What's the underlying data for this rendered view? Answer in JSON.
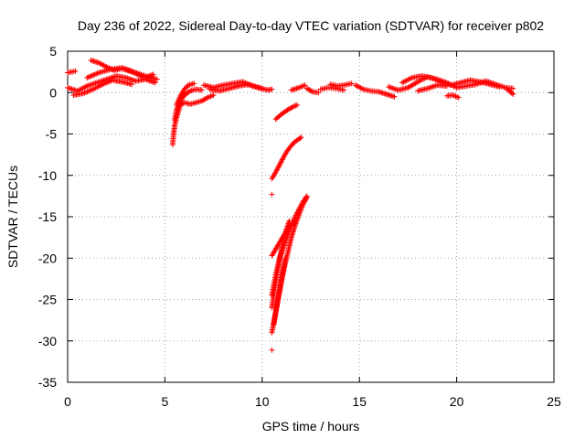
{
  "chart_data": {
    "type": "scatter",
    "title": "Day 236 of 2022, Sidereal Day-to-day VTEC variation (SDTVAR) for receiver p802",
    "xlabel": "GPS time / hours",
    "ylabel": "SDTVAR / TECUs",
    "xlim": [
      0,
      25
    ],
    "ylim": [
      -35,
      5
    ],
    "xticks": [
      0,
      5,
      10,
      15,
      20,
      25
    ],
    "yticks": [
      5,
      0,
      -5,
      -10,
      -15,
      -20,
      -25,
      -30,
      -35
    ],
    "grid": true,
    "marker": "+",
    "color": "#ff0000",
    "series": [
      {
        "name": "SDTVAR",
        "segments": [
          [
            [
              0.0,
              0.6
            ],
            [
              0.5,
              0.2
            ],
            [
              1.0,
              0.8
            ],
            [
              1.5,
              1.2
            ],
            [
              2.0,
              1.6
            ],
            [
              2.5,
              2.0
            ],
            [
              3.0,
              1.8
            ],
            [
              3.5,
              1.4
            ],
            [
              4.0,
              1.6
            ],
            [
              4.5,
              1.2
            ]
          ],
          [
            [
              0.0,
              2.4
            ],
            [
              0.4,
              2.6
            ]
          ],
          [
            [
              1.2,
              3.9
            ],
            [
              1.6,
              3.6
            ],
            [
              2.0,
              3.1
            ],
            [
              2.4,
              2.7
            ],
            [
              2.8,
              2.9
            ],
            [
              3.2,
              2.6
            ],
            [
              3.6,
              2.2
            ],
            [
              4.0,
              1.8
            ],
            [
              4.4,
              2.2
            ]
          ],
          [
            [
              1.0,
              1.8
            ],
            [
              1.6,
              2.4
            ],
            [
              2.2,
              2.8
            ],
            [
              2.8,
              3.0
            ],
            [
              3.4,
              2.5
            ],
            [
              4.0,
              2.0
            ],
            [
              4.6,
              1.6
            ]
          ],
          [
            [
              0.3,
              -0.3
            ],
            [
              0.8,
              -0.1
            ],
            [
              1.3,
              0.4
            ],
            [
              1.8,
              1.0
            ],
            [
              2.3,
              1.5
            ],
            [
              2.8,
              1.3
            ],
            [
              3.3,
              1.0
            ]
          ],
          [
            [
              5.4,
              -6.3
            ],
            [
              5.45,
              -5.0
            ],
            [
              5.5,
              -4.0
            ],
            [
              5.6,
              -3.0
            ],
            [
              5.7,
              -2.2
            ],
            [
              5.8,
              -1.5
            ],
            [
              6.0,
              -1.2
            ],
            [
              6.3,
              -1.4
            ],
            [
              6.6,
              -1.2
            ],
            [
              6.9,
              -1.0
            ],
            [
              7.2,
              -0.6
            ],
            [
              7.5,
              -0.3
            ]
          ],
          [
            [
              5.5,
              -3.3
            ],
            [
              5.6,
              -2.0
            ],
            [
              5.8,
              -1.0
            ],
            [
              6.0,
              -0.3
            ],
            [
              6.3,
              0.2
            ],
            [
              6.6,
              0.4
            ],
            [
              6.9,
              0.3
            ]
          ],
          [
            [
              5.6,
              -1.5
            ],
            [
              5.8,
              -0.4
            ],
            [
              6.0,
              0.4
            ],
            [
              6.2,
              0.9
            ],
            [
              6.5,
              1.1
            ]
          ],
          [
            [
              7.3,
              0.4
            ],
            [
              7.8,
              0.2
            ],
            [
              8.3,
              0.5
            ],
            [
              8.8,
              0.8
            ],
            [
              9.3,
              1.0
            ],
            [
              9.8,
              0.6
            ],
            [
              10.3,
              0.3
            ],
            [
              10.5,
              0.4
            ]
          ],
          [
            [
              7.0,
              0.9
            ],
            [
              7.5,
              0.6
            ],
            [
              8.0,
              0.9
            ],
            [
              8.5,
              1.1
            ],
            [
              9.0,
              1.3
            ],
            [
              9.5,
              0.8
            ],
            [
              10.0,
              0.5
            ]
          ],
          [
            [
              10.5,
              -12.3
            ]
          ],
          [
            [
              10.5,
              -10.4
            ],
            [
              10.7,
              -9.6
            ],
            [
              10.9,
              -8.7
            ],
            [
              11.1,
              -7.8
            ],
            [
              11.3,
              -7.0
            ],
            [
              11.5,
              -6.4
            ],
            [
              11.7,
              -5.9
            ],
            [
              11.9,
              -5.6
            ],
            [
              12.0,
              -5.4
            ]
          ],
          [
            [
              10.7,
              -3.2
            ],
            [
              11.0,
              -2.6
            ],
            [
              11.3,
              -2.1
            ],
            [
              11.6,
              -1.7
            ],
            [
              11.8,
              -1.5
            ]
          ],
          [
            [
              10.5,
              -31.1
            ]
          ],
          [
            [
              10.5,
              -29.0
            ],
            [
              10.7,
              -26.5
            ],
            [
              10.9,
              -24.0
            ],
            [
              11.1,
              -21.5
            ],
            [
              11.3,
              -19.5
            ],
            [
              11.5,
              -17.5
            ],
            [
              11.7,
              -16.0
            ],
            [
              11.9,
              -14.7
            ],
            [
              12.1,
              -13.5
            ],
            [
              12.3,
              -12.7
            ]
          ],
          [
            [
              10.5,
              -24.5
            ],
            [
              10.7,
              -22.0
            ],
            [
              10.9,
              -20.0
            ],
            [
              11.2,
              -18.0
            ],
            [
              11.5,
              -16.0
            ],
            [
              11.8,
              -14.5
            ],
            [
              12.1,
              -13.2
            ],
            [
              12.3,
              -12.5
            ]
          ],
          [
            [
              10.5,
              -26.0
            ],
            [
              10.8,
              -21.5
            ],
            [
              11.1,
              -17.5
            ],
            [
              11.4,
              -15.5
            ]
          ],
          [
            [
              10.5,
              -19.7
            ],
            [
              10.8,
              -18.5
            ],
            [
              11.1,
              -17.3
            ],
            [
              11.4,
              -16.3
            ],
            [
              11.7,
              -15.5
            ]
          ],
          [
            [
              10.6,
              -28.0
            ],
            [
              10.8,
              -25.0
            ],
            [
              11.0,
              -22.5
            ],
            [
              11.2,
              -20.0
            ]
          ],
          [
            [
              11.5,
              0.3
            ],
            [
              11.9,
              0.6
            ],
            [
              12.2,
              0.9
            ]
          ],
          [
            [
              12.3,
              0.5
            ],
            [
              12.6,
              0.1
            ],
            [
              12.9,
              0.0
            ]
          ],
          [
            [
              13.0,
              0.4
            ],
            [
              13.4,
              0.6
            ],
            [
              13.8,
              0.5
            ],
            [
              14.2,
              0.3
            ]
          ],
          [
            [
              13.5,
              1.0
            ],
            [
              13.9,
              0.8
            ],
            [
              14.2,
              0.9
            ],
            [
              14.6,
              1.1
            ]
          ],
          [
            [
              14.8,
              0.9
            ],
            [
              15.2,
              0.4
            ],
            [
              15.6,
              0.2
            ],
            [
              16.0,
              0.1
            ],
            [
              16.4,
              -0.2
            ],
            [
              16.8,
              -0.5
            ]
          ],
          [
            [
              16.5,
              0.7
            ],
            [
              17.0,
              0.3
            ],
            [
              17.5,
              0.6
            ],
            [
              18.0,
              1.3
            ],
            [
              18.5,
              1.9
            ],
            [
              19.0,
              1.6
            ],
            [
              19.5,
              1.2
            ],
            [
              20.0,
              0.6
            ],
            [
              20.5,
              0.8
            ],
            [
              21.0,
              1.0
            ],
            [
              21.5,
              1.4
            ],
            [
              22.0,
              1.0
            ],
            [
              22.5,
              0.6
            ],
            [
              22.9,
              0.5
            ]
          ],
          [
            [
              17.2,
              1.2
            ],
            [
              17.7,
              1.8
            ],
            [
              18.2,
              2.0
            ],
            [
              18.7,
              1.8
            ],
            [
              19.2,
              1.3
            ],
            [
              19.7,
              0.9
            ],
            [
              20.2,
              1.2
            ],
            [
              20.7,
              1.5
            ],
            [
              21.2,
              1.3
            ],
            [
              21.7,
              1.0
            ],
            [
              22.2,
              0.7
            ]
          ],
          [
            [
              18.0,
              0.2
            ],
            [
              18.5,
              0.5
            ],
            [
              19.0,
              0.9
            ],
            [
              19.5,
              0.8
            ]
          ],
          [
            [
              19.5,
              -0.4
            ],
            [
              19.8,
              -0.3
            ],
            [
              20.1,
              -0.6
            ]
          ],
          [
            [
              22.6,
              0.4
            ],
            [
              22.9,
              -0.2
            ]
          ]
        ]
      }
    ]
  }
}
